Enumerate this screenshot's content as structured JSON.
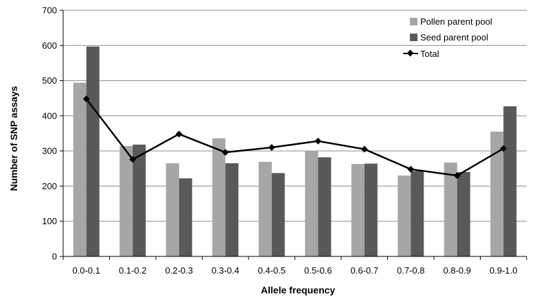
{
  "chart_data": {
    "type": "bar",
    "title": "",
    "xlabel": "Allele frequency",
    "ylabel": "Number of SNP assays",
    "ylim": [
      0,
      700
    ],
    "yticks": [
      0,
      100,
      200,
      300,
      400,
      500,
      600,
      700
    ],
    "grid": true,
    "legend_position": "top-right",
    "categories": [
      "0.0-0.1",
      "0.1-0.2",
      "0.2-0.3",
      "0.3-0.4",
      "0.4-0.5",
      "0.5-0.6",
      "0.6-0.7",
      "0.7-0.8",
      "0.8-0.9",
      "0.9-1.0"
    ],
    "series": [
      {
        "name": "Pollen parent pool",
        "kind": "bar",
        "color": "#a6a6a6",
        "values": [
          494,
          314,
          265,
          336,
          269,
          301,
          263,
          230,
          267,
          355
        ]
      },
      {
        "name": "Seed parent pool",
        "kind": "bar",
        "color": "#595959",
        "values": [
          597,
          318,
          222,
          265,
          237,
          282,
          264,
          243,
          240,
          427
        ]
      },
      {
        "name": "Total",
        "kind": "line",
        "color": "#000000",
        "values": [
          448,
          276,
          348,
          296,
          310,
          328,
          305,
          248,
          230,
          307
        ]
      }
    ]
  }
}
